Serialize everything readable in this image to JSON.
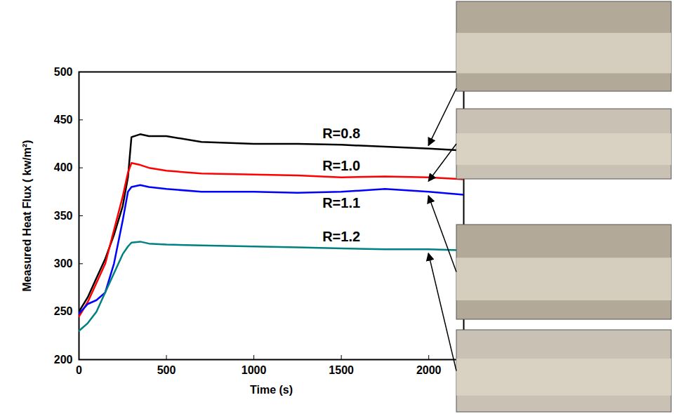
{
  "chart_data": {
    "type": "line",
    "x_label": "Time (s)",
    "y_label": "Measured Heat Flux ( kw/m²)",
    "x": [
      0,
      50,
      100,
      150,
      200,
      250,
      280,
      300,
      350,
      400,
      500,
      700,
      1000,
      1250,
      1500,
      1750,
      2000,
      2200
    ],
    "series": [
      {
        "name": "R=0.8",
        "color": "#000000",
        "values": [
          250,
          265,
          285,
          305,
          330,
          360,
          390,
          432,
          435,
          433,
          433,
          427,
          425,
          425,
          424,
          422,
          420,
          418
        ]
      },
      {
        "name": "R=1.0",
        "color": "#ff0000",
        "values": [
          245,
          260,
          280,
          300,
          335,
          370,
          395,
          405,
          403,
          400,
          397,
          394,
          393,
          392,
          390,
          391,
          390,
          388
        ]
      },
      {
        "name": "R=1.1",
        "color": "#0000ff",
        "values": [
          248,
          258,
          262,
          270,
          300,
          345,
          375,
          380,
          382,
          380,
          378,
          375,
          375,
          374,
          375,
          378,
          375,
          372
        ]
      },
      {
        "name": "R=1.2",
        "color": "#008080",
        "values": [
          230,
          238,
          250,
          270,
          290,
          310,
          318,
          322,
          323,
          321,
          320,
          319,
          318,
          317,
          316,
          315,
          315,
          314
        ]
      }
    ],
    "xlim": [
      0,
      2200
    ],
    "xticks": [
      0,
      500,
      1000,
      1500,
      2000
    ],
    "ylim": [
      200,
      500
    ],
    "yticks": [
      200,
      250,
      300,
      350,
      400,
      450,
      500
    ],
    "grid": false
  }
}
